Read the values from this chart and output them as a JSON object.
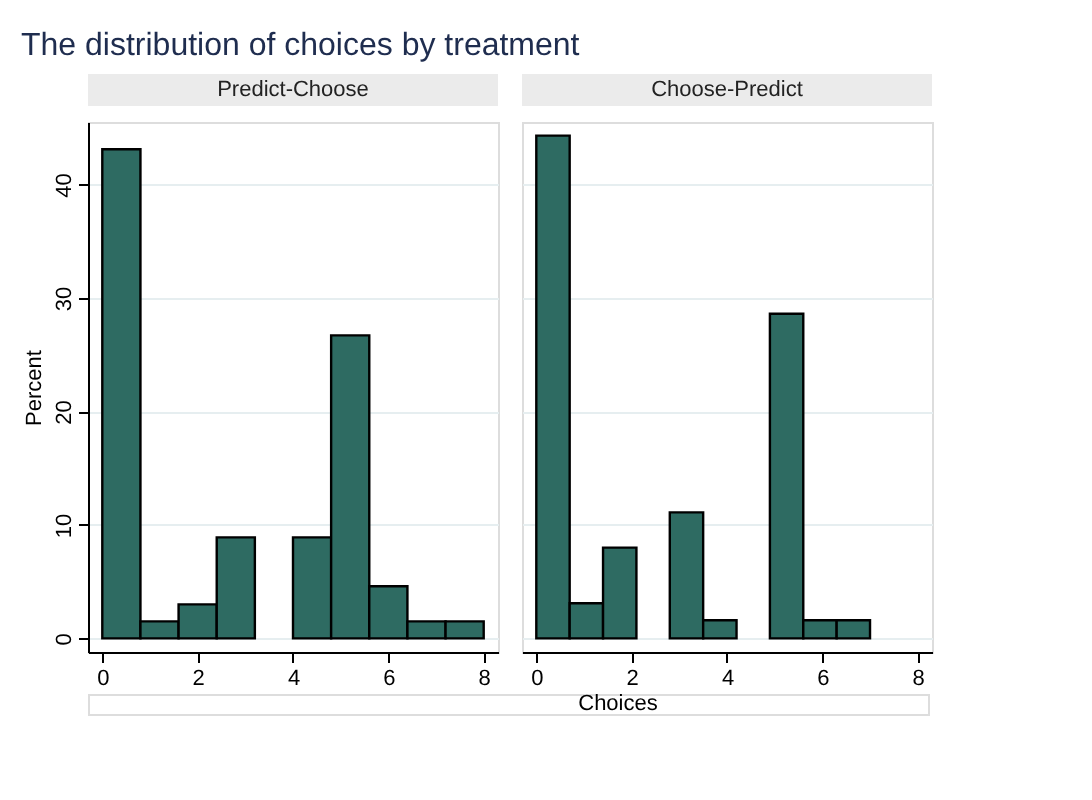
{
  "chart_data": [
    {
      "type": "histogram",
      "title": "The distribution of choices by treatment",
      "subtitle": "Predict-Choose",
      "xlabel": "Choices",
      "ylabel": "Percent",
      "color": "#2e6b62",
      "bins": [
        0,
        0.8,
        1.6,
        2.4,
        3.2,
        4.0,
        4.8,
        5.6,
        6.4,
        7.2,
        8.0
      ],
      "values": [
        43.1,
        1.5,
        3.0,
        8.9,
        0,
        8.9,
        26.7,
        4.6,
        1.5,
        1.5
      ],
      "xlim": [
        -0.3,
        8.3
      ],
      "xticks": [
        0,
        2,
        4,
        6,
        8
      ],
      "ylim": [
        -1.2,
        45.5
      ],
      "yticks": [
        0,
        10,
        20,
        30,
        40
      ],
      "grid": "y"
    },
    {
      "type": "histogram",
      "subtitle": "Choose-Predict",
      "color": "#2e6b62",
      "bins": [
        0,
        0.7,
        1.4,
        2.1,
        2.8,
        3.5,
        4.2,
        4.9,
        5.6,
        6.3,
        7.0
      ],
      "values": [
        44.3,
        3.1,
        8.0,
        0,
        11.1,
        1.6,
        0,
        28.6,
        1.6,
        1.6
      ],
      "xlim": [
        -0.3,
        8.3
      ],
      "xticks": [
        0,
        2,
        4,
        6,
        8
      ],
      "ylim": [
        -1.2,
        45.5
      ],
      "yticks": [
        0,
        10,
        20,
        30,
        40
      ],
      "grid": "y",
      "tick_labels": "x"
    }
  ]
}
